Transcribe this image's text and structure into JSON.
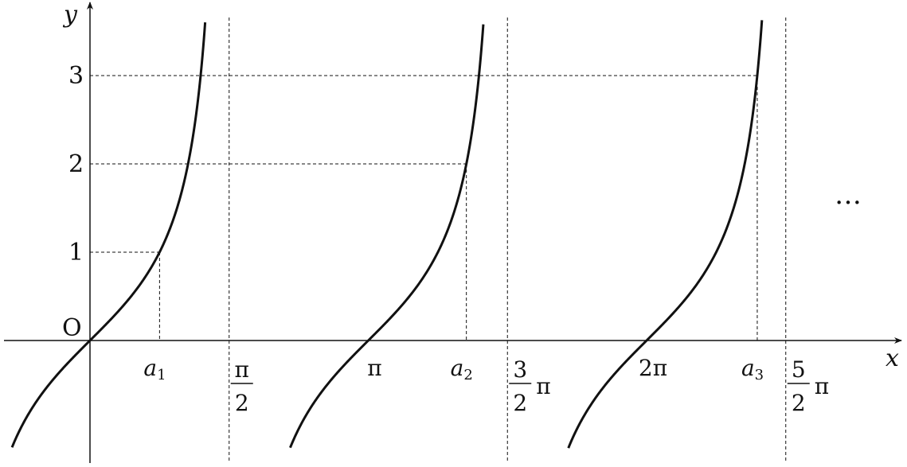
{
  "chart_data": {
    "type": "line",
    "function": "y = tan x",
    "xlabel": "x",
    "ylabel": "y",
    "origin_label": "O",
    "x_range_pi": [
      -0.28,
      2.94
    ],
    "y_range": [
      -1.25,
      3.7
    ],
    "y_ticks": [
      {
        "value": 1,
        "label": "1"
      },
      {
        "value": 2,
        "label": "2"
      },
      {
        "value": 3,
        "label": "3"
      }
    ],
    "x_marks": [
      {
        "name": "a1",
        "letter": "a",
        "sub": "1",
        "value": 0.7854,
        "y": 1
      },
      {
        "name": "a2",
        "letter": "a",
        "sub": "2",
        "value": 4.2487,
        "y": 2
      },
      {
        "name": "a3",
        "letter": "a",
        "sub": "3",
        "value": 7.5322,
        "y": 3
      }
    ],
    "pi_labels": [
      {
        "name": "pi",
        "text": "π",
        "value": 3.14159
      },
      {
        "name": "2pi",
        "text": "2π",
        "value": 6.28319
      }
    ],
    "asymptotes": [
      {
        "value": 1.5708,
        "num": "π",
        "den": "2",
        "suffix": ""
      },
      {
        "value": 4.7124,
        "num": "3",
        "den": "2",
        "suffix": "π"
      },
      {
        "value": 7.854,
        "num": "5",
        "den": "2",
        "suffix": "π"
      }
    ],
    "branches": [
      {
        "x_from": -0.88,
        "x_to": 1.3
      },
      {
        "x_from": 2.26,
        "x_to": 4.44
      },
      {
        "x_from": 5.4,
        "x_to": 7.585
      }
    ],
    "grid": false,
    "ellipsis": "…"
  }
}
